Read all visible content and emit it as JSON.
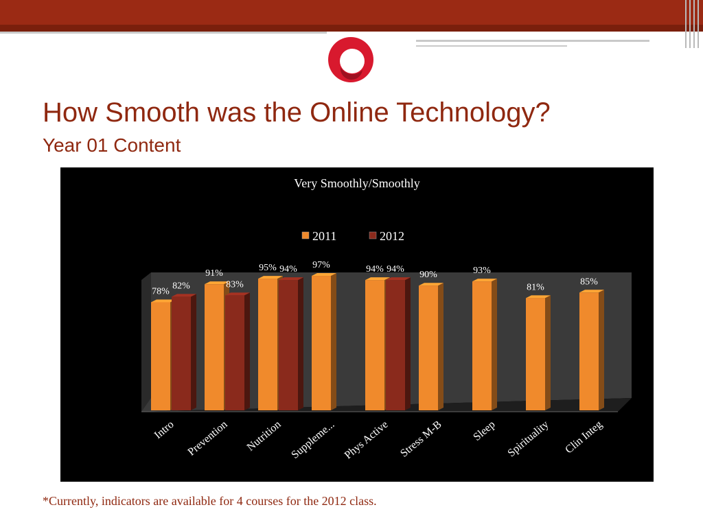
{
  "slide": {
    "title": "How Smooth was the Online Technology?",
    "subtitle": "Year 01 Content",
    "footnote": "*Currently, indicators are available for 4 courses for the 2012 class."
  },
  "theme": {
    "header_color": "#9b2a14",
    "title_color": "#8f2810",
    "logo_color": "#d8192e",
    "chart_background": "#000000"
  },
  "chart_data": {
    "type": "bar",
    "title": "Very Smoothly/Smoothly",
    "legend_position": "top",
    "categories": [
      "Intro",
      "Prevention",
      "Nutrition",
      "Suppleme...",
      "Phys Active",
      "Stress M-B",
      "Sleep",
      "Spirituality",
      "Clin Integ"
    ],
    "series": [
      {
        "name": "2011",
        "color": "#f08a2c",
        "values": [
          78,
          91,
          95,
          97,
          94,
          90,
          93,
          81,
          85
        ],
        "labels": [
          "78%",
          "91%",
          "95%",
          "97%",
          "94%",
          "90%",
          "93%",
          "81%",
          "85%"
        ]
      },
      {
        "name": "2012",
        "color": "#8a2a1c",
        "values": [
          82,
          83,
          94,
          null,
          94,
          null,
          null,
          null,
          null
        ],
        "labels": [
          "82%",
          "83%",
          "94%",
          null,
          "94%",
          null,
          null,
          null,
          null
        ]
      }
    ],
    "ylim": [
      0,
      100
    ],
    "grid": false,
    "three_d": true
  }
}
